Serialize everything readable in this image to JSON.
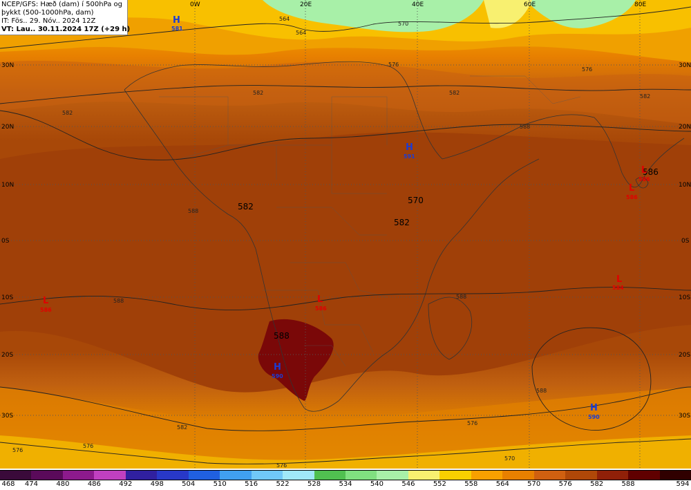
{
  "header": {
    "line1": "NCEP/GFS: Hæð (dam) í 500hPa og",
    "line2": "þykkt (500-1000hPa, dam)",
    "line3": "IT: Fös.. 29. Nóv.. 2024 12Z",
    "line4": "VT: Lau.. 30.11.2024 17Z (+29 h)"
  },
  "lon_labels": [
    "0W",
    "20E",
    "40E",
    "60E",
    "80E"
  ],
  "lat_labels": [
    "30N",
    "20N",
    "10N",
    "0S",
    "10S",
    "20S",
    "30S"
  ],
  "pressure_centers": [
    {
      "type": "H",
      "value": "581"
    },
    {
      "type": "H",
      "value": "591"
    },
    {
      "type": "L",
      "value": "586"
    },
    {
      "type": "L",
      "value": "586"
    },
    {
      "type": "H",
      "value": "590"
    },
    {
      "type": "L",
      "value": "584"
    },
    {
      "type": "L",
      "value": "586"
    },
    {
      "type": "H",
      "value": "590"
    },
    {
      "type": "L",
      "value": "586"
    }
  ],
  "contour_labels": [
    "564",
    "564",
    "570",
    "576",
    "576",
    "582",
    "582",
    "582",
    "582",
    "588",
    "588",
    "588",
    "588",
    "576",
    "576",
    "576",
    "570",
    "582",
    "576",
    "588"
  ],
  "big_labels": [
    "582",
    "570",
    "582",
    "588",
    "586"
  ],
  "colors": {
    "H": "#1a3cd6",
    "L": "#e00000"
  },
  "legend": {
    "values": [
      "468",
      "474",
      "480",
      "486",
      "492",
      "498",
      "504",
      "510",
      "516",
      "522",
      "528",
      "534",
      "540",
      "546",
      "552",
      "558",
      "564",
      "570",
      "576",
      "582",
      "588",
      "594"
    ],
    "colors": [
      "#3a0a3a",
      "#5a0a5a",
      "#8c1a8c",
      "#c040c0",
      "#3020a0",
      "#2838c8",
      "#2060e0",
      "#40a0f0",
      "#70c8f8",
      "#a0e8f8",
      "#50c050",
      "#80e080",
      "#a8f0a8",
      "#f8f070",
      "#f8d000",
      "#f8a000",
      "#e88000",
      "#d06010",
      "#b04808",
      "#902008",
      "#600000",
      "#300000"
    ]
  }
}
